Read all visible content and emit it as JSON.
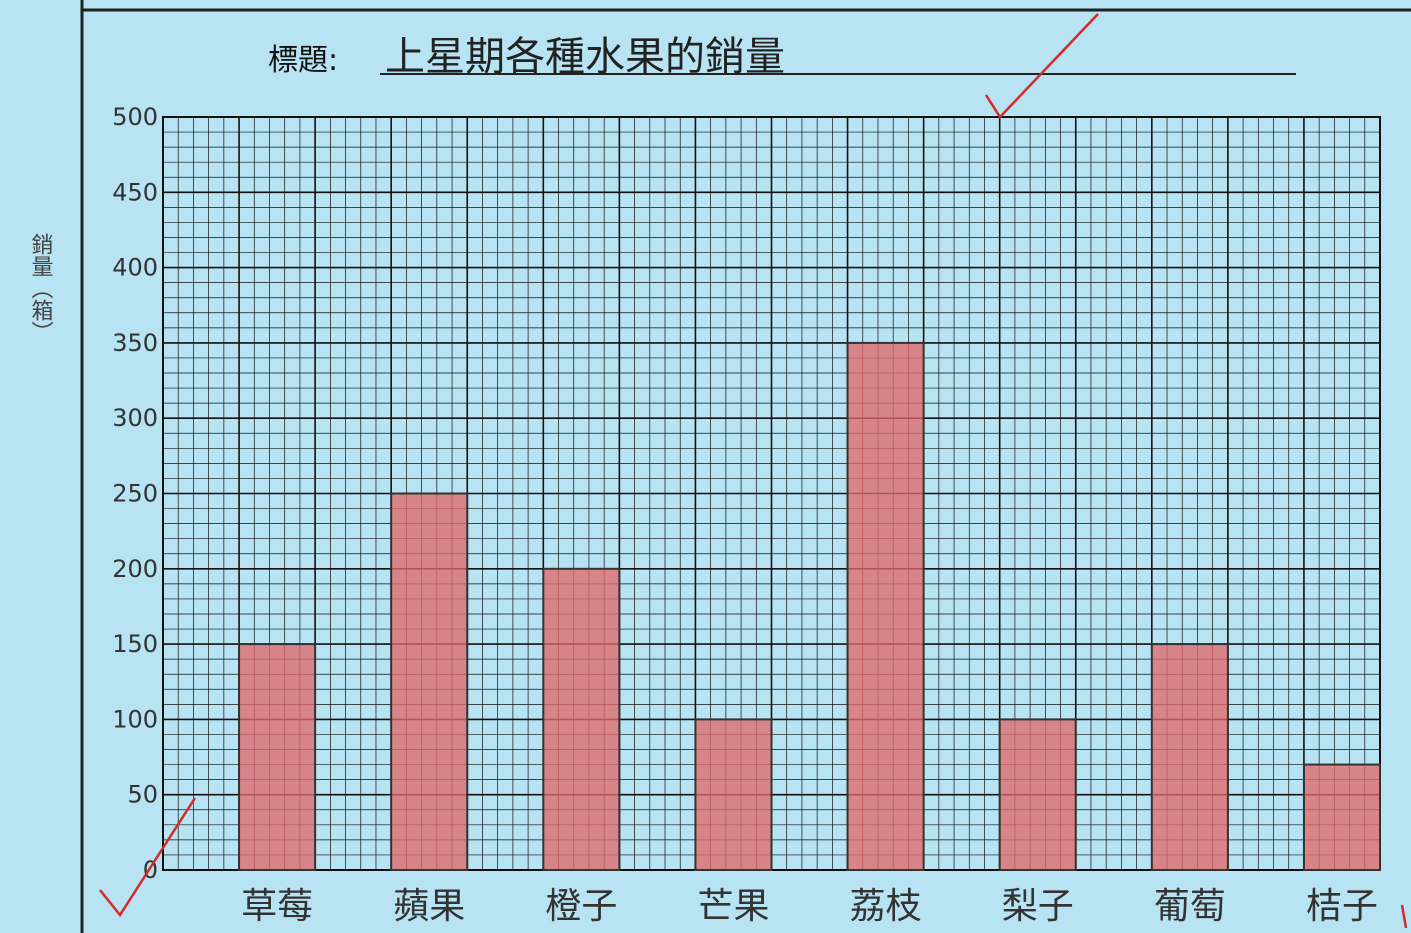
{
  "title_prefix": "標題:",
  "chart_data": {
    "type": "bar",
    "title": "上星期各種水果的銷量",
    "ylabel": "銷量（箱）",
    "xlabel": "",
    "categories": [
      "草莓",
      "蘋果",
      "橙子",
      "芒果",
      "荔枝",
      "梨子",
      "葡萄",
      "桔子"
    ],
    "values": [
      150,
      250,
      200,
      100,
      350,
      100,
      150,
      70
    ],
    "ylim": [
      0,
      500
    ],
    "yticks": [
      0,
      50,
      100,
      150,
      200,
      250,
      300,
      350,
      400,
      450,
      500
    ],
    "grid": true,
    "legend": "none"
  },
  "colors": {
    "paper": "#b7e3f3",
    "grid": "#111111",
    "bar": "#e06a6a",
    "check": "#d42a2a"
  }
}
